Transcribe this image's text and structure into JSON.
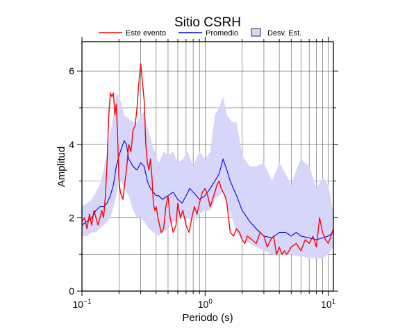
{
  "chart_data": {
    "type": "line",
    "title": "Sitio CSRH",
    "xlabel": "Periodo (s)",
    "ylabel": "Amplitud",
    "xscale": "log",
    "xlim": [
      0.1,
      11
    ],
    "ylim": [
      0,
      6.8
    ],
    "x_ticks": [
      {
        "value": 0.1,
        "base": "10",
        "exp": "−1"
      },
      {
        "value": 1,
        "base": "10",
        "exp": "0"
      },
      {
        "value": 10,
        "base": "10",
        "exp": "1"
      }
    ],
    "y_ticks": [
      {
        "value": 0,
        "label": "0"
      },
      {
        "value": 2,
        "label": "2"
      },
      {
        "value": 4,
        "label": "4"
      },
      {
        "value": 6,
        "label": "6"
      }
    ],
    "grid": true,
    "legend_position": "top",
    "legend": [
      {
        "label": "Este evento",
        "kind": "line",
        "color": "#ff0000"
      },
      {
        "label": "Promedio",
        "kind": "line",
        "color": "#0000dd"
      },
      {
        "label": "Desv. Est.",
        "kind": "box",
        "color": "#d6d6fa"
      }
    ],
    "band": {
      "color": "#d6d6fa",
      "x": [
        0.1,
        0.11,
        0.12,
        0.13,
        0.14,
        0.15,
        0.16,
        0.17,
        0.18,
        0.19,
        0.2,
        0.21,
        0.22,
        0.24,
        0.26,
        0.28,
        0.3,
        0.32,
        0.35,
        0.38,
        0.42,
        0.46,
        0.5,
        0.55,
        0.6,
        0.66,
        0.72,
        0.8,
        0.9,
        1.0,
        1.1,
        1.2,
        1.3,
        1.4,
        1.5,
        1.65,
        1.8,
        2.0,
        2.3,
        2.6,
        3.0,
        3.5,
        4.0,
        4.5,
        5.0,
        5.5,
        6.0,
        7.0,
        8.0,
        9.0,
        10.0,
        11.0
      ],
      "upper": [
        2.3,
        2.4,
        2.5,
        2.7,
        2.9,
        3.3,
        3.8,
        4.3,
        4.8,
        5.4,
        5.3,
        5.1,
        4.8,
        4.7,
        4.6,
        4.6,
        4.8,
        4.9,
        4.3,
        3.9,
        3.5,
        3.8,
        3.7,
        3.8,
        3.5,
        3.6,
        3.8,
        3.4,
        3.8,
        3.6,
        3.8,
        4.8,
        5.0,
        5.3,
        4.8,
        4.6,
        4.6,
        3.7,
        3.4,
        3.4,
        3.5,
        3.0,
        3.5,
        3.2,
        2.9,
        3.3,
        3.6,
        3.4,
        2.8,
        3.1,
        2.9,
        2.1
      ],
      "lower": [
        1.5,
        1.5,
        1.6,
        1.6,
        1.7,
        1.8,
        1.9,
        2.0,
        2.3,
        2.6,
        3.0,
        3.0,
        2.8,
        2.6,
        2.2,
        2.0,
        2.0,
        1.9,
        1.7,
        1.6,
        1.5,
        1.6,
        1.7,
        1.9,
        1.9,
        2.0,
        2.0,
        1.9,
        2.1,
        2.2,
        2.2,
        2.5,
        2.6,
        2.7,
        2.4,
        2.0,
        1.6,
        1.4,
        1.3,
        1.2,
        1.1,
        1.0,
        1.0,
        1.0,
        1.0,
        0.95,
        0.95,
        0.9,
        0.9,
        0.9,
        1.0,
        1.2
      ]
    },
    "series": [
      {
        "name": "Promedio",
        "color": "#0000dd",
        "x": [
          0.1,
          0.11,
          0.12,
          0.13,
          0.14,
          0.15,
          0.16,
          0.17,
          0.18,
          0.19,
          0.2,
          0.21,
          0.22,
          0.23,
          0.24,
          0.26,
          0.28,
          0.3,
          0.32,
          0.34,
          0.36,
          0.38,
          0.4,
          0.42,
          0.45,
          0.5,
          0.55,
          0.6,
          0.65,
          0.7,
          0.75,
          0.8,
          0.85,
          0.9,
          1.0,
          1.1,
          1.2,
          1.3,
          1.4,
          1.5,
          1.6,
          1.8,
          2.0,
          2.3,
          2.6,
          3.0,
          3.5,
          4.0,
          4.5,
          5.0,
          5.5,
          6.0,
          7.0,
          8.0,
          9.0,
          10.0,
          11.0
        ],
        "values": [
          1.8,
          1.9,
          2.0,
          2.2,
          2.3,
          2.3,
          2.4,
          2.6,
          2.9,
          3.4,
          3.7,
          3.9,
          4.1,
          4.0,
          3.6,
          3.4,
          3.3,
          3.5,
          3.4,
          3.0,
          2.8,
          2.7,
          2.6,
          2.6,
          2.5,
          2.6,
          2.7,
          2.5,
          2.4,
          2.6,
          2.8,
          2.7,
          2.6,
          2.5,
          2.6,
          2.8,
          3.0,
          3.2,
          3.6,
          3.3,
          3.0,
          2.6,
          2.2,
          1.9,
          1.7,
          1.5,
          1.45,
          1.6,
          1.6,
          1.5,
          1.6,
          1.5,
          1.45,
          1.4,
          1.45,
          1.5,
          1.6
        ]
      },
      {
        "name": "Este evento",
        "color": "#ff0000",
        "x": [
          0.1,
          0.105,
          0.11,
          0.115,
          0.12,
          0.125,
          0.13,
          0.135,
          0.14,
          0.145,
          0.15,
          0.155,
          0.16,
          0.165,
          0.17,
          0.175,
          0.18,
          0.185,
          0.19,
          0.195,
          0.2,
          0.205,
          0.21,
          0.215,
          0.22,
          0.23,
          0.24,
          0.25,
          0.26,
          0.27,
          0.28,
          0.29,
          0.3,
          0.31,
          0.32,
          0.33,
          0.34,
          0.35,
          0.36,
          0.37,
          0.38,
          0.39,
          0.4,
          0.42,
          0.44,
          0.46,
          0.48,
          0.5,
          0.52,
          0.55,
          0.58,
          0.6,
          0.63,
          0.66,
          0.7,
          0.74,
          0.78,
          0.82,
          0.86,
          0.9,
          0.95,
          1.0,
          1.05,
          1.1,
          1.15,
          1.2,
          1.25,
          1.3,
          1.35,
          1.4,
          1.45,
          1.5,
          1.55,
          1.6,
          1.7,
          1.8,
          1.9,
          2.0,
          2.1,
          2.2,
          2.4,
          2.6,
          2.8,
          3.0,
          3.2,
          3.4,
          3.6,
          3.8,
          4.0,
          4.2,
          4.4,
          4.6,
          5.0,
          5.5,
          6.0,
          6.5,
          7.0,
          7.5,
          8.0,
          8.5,
          9.0,
          9.5,
          10.0,
          10.5,
          11.0
        ],
        "values": [
          1.9,
          2.0,
          1.7,
          2.1,
          1.8,
          2.2,
          2.0,
          1.8,
          2.0,
          2.2,
          2.0,
          2.6,
          3.5,
          4.8,
          5.4,
          5.3,
          5.4,
          4.8,
          5.1,
          4.2,
          3.0,
          2.7,
          2.6,
          2.5,
          2.8,
          3.3,
          4.0,
          3.8,
          4.4,
          4.5,
          5.0,
          5.7,
          6.2,
          5.7,
          5.2,
          4.0,
          3.5,
          3.3,
          3.6,
          3.1,
          2.4,
          2.2,
          2.3,
          1.9,
          1.6,
          1.7,
          2.3,
          2.6,
          2.0,
          1.6,
          1.8,
          2.4,
          2.0,
          2.2,
          1.8,
          1.6,
          2.0,
          2.3,
          2.1,
          2.4,
          2.7,
          2.8,
          2.6,
          2.3,
          2.5,
          2.7,
          2.9,
          3.0,
          2.8,
          2.7,
          2.6,
          2.4,
          2.0,
          1.6,
          1.5,
          1.7,
          1.6,
          1.4,
          1.3,
          1.5,
          1.4,
          1.3,
          1.6,
          1.5,
          1.2,
          1.4,
          1.5,
          1.0,
          1.2,
          1.0,
          1.1,
          1.0,
          1.2,
          1.3,
          1.1,
          1.4,
          1.3,
          1.5,
          1.2,
          2.0,
          1.6,
          1.4,
          1.3,
          1.5,
          1.7
        ]
      }
    ]
  }
}
